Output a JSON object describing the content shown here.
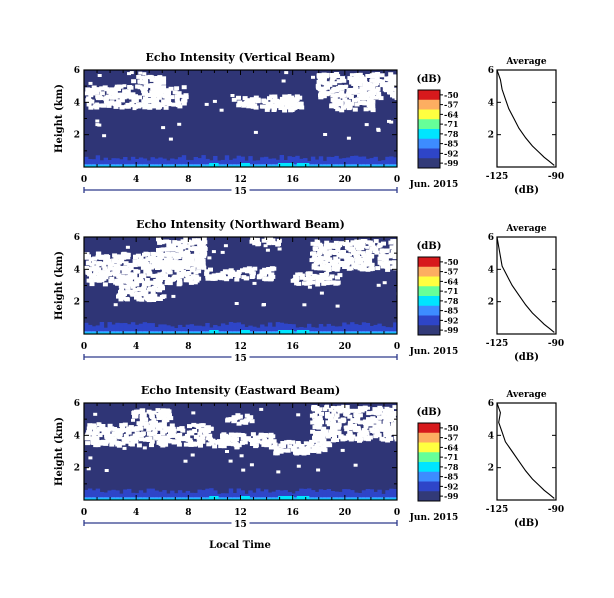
{
  "figure": {
    "xlabel": "Local Time",
    "date_label": "Jun. 2015",
    "day_label": "15",
    "colorbar_unit": "(dB)",
    "avg_title": "Average",
    "avg_xlabel": "(dB)"
  },
  "chart_data": [
    {
      "type": "heatmap",
      "title": "Echo Intensity (Vertical Beam)",
      "ylabel": "Height (km)",
      "xlabel": "Local Time",
      "x_ticks": [
        "0",
        "4",
        "8",
        "12",
        "16",
        "20",
        "0"
      ],
      "y_ticks": [
        "6",
        "4",
        "2"
      ],
      "xlim": [
        0,
        24
      ],
      "ylim": [
        0,
        6
      ],
      "colorbar": {
        "label": "(dB)",
        "ticks": [
          "-50",
          "-57",
          "-64",
          "-71",
          "-78",
          "-85",
          "-92",
          "-99"
        ],
        "range": [
          -99,
          -50
        ]
      },
      "colors": [
        "#d7191c",
        "#fdae61",
        "#ffff40",
        "#66ff99",
        "#00e5ff",
        "#3d8cff",
        "#2e45c8",
        "#323a78"
      ],
      "background": "#2f3576",
      "data_gap_color": "#ffffff",
      "noise_level": -99
    },
    {
      "type": "heatmap",
      "title": "Echo Intensity (Northward Beam)",
      "ylabel": "Height (km)",
      "xlabel": "Local Time",
      "x_ticks": [
        "0",
        "4",
        "8",
        "12",
        "16",
        "20",
        "0"
      ],
      "y_ticks": [
        "6",
        "4",
        "2"
      ],
      "xlim": [
        0,
        24
      ],
      "ylim": [
        0,
        6
      ],
      "colorbar": {
        "label": "(dB)",
        "ticks": [
          "-50",
          "-57",
          "-64",
          "-71",
          "-78",
          "-85",
          "-92",
          "-99"
        ],
        "range": [
          -99,
          -50
        ]
      },
      "colors": [
        "#d7191c",
        "#fdae61",
        "#ffff40",
        "#66ff99",
        "#00e5ff",
        "#3d8cff",
        "#2e45c8",
        "#323a78"
      ],
      "background": "#2f3576",
      "data_gap_color": "#ffffff",
      "noise_level": -99
    },
    {
      "type": "heatmap",
      "title": "Echo Intensity (Eastward Beam)",
      "ylabel": "Height (km)",
      "xlabel": "Local Time",
      "x_ticks": [
        "0",
        "4",
        "8",
        "12",
        "16",
        "20",
        "0"
      ],
      "y_ticks": [
        "6",
        "4",
        "2"
      ],
      "xlim": [
        0,
        24
      ],
      "ylim": [
        0,
        6
      ],
      "colorbar": {
        "label": "(dB)",
        "ticks": [
          "-50",
          "-57",
          "-64",
          "-71",
          "-78",
          "-85",
          "-92",
          "-99"
        ],
        "range": [
          -99,
          -50
        ]
      },
      "colors": [
        "#d7191c",
        "#fdae61",
        "#ffff40",
        "#66ff99",
        "#00e5ff",
        "#3d8cff",
        "#2e45c8",
        "#323a78"
      ],
      "background": "#2f3576",
      "data_gap_color": "#ffffff",
      "noise_level": -99
    },
    {
      "type": "line",
      "title": "Average",
      "xlabel": "(dB)",
      "x_ticks": [
        "-125",
        "-90"
      ],
      "y_ticks": [
        "6",
        "4",
        "2"
      ],
      "xlim": [
        -125,
        -90
      ],
      "ylim": [
        0,
        6
      ],
      "series": [
        {
          "x": [
            -125,
            -123,
            -122,
            -120,
            -118,
            -115,
            -112,
            -108,
            -104,
            -100,
            -97,
            -94,
            -91
          ],
          "y": [
            6,
            5.4,
            4.8,
            4.2,
            3.6,
            3.0,
            2.4,
            1.8,
            1.3,
            0.9,
            0.6,
            0.35,
            0.1
          ]
        }
      ]
    },
    {
      "type": "line",
      "title": "Average",
      "xlabel": "(dB)",
      "x_ticks": [
        "-125",
        "-90"
      ],
      "y_ticks": [
        "6",
        "4",
        "2"
      ],
      "xlim": [
        -125,
        -90
      ],
      "ylim": [
        0,
        6
      ],
      "series": [
        {
          "x": [
            -125,
            -124,
            -123,
            -122,
            -119,
            -116,
            -112,
            -108,
            -104,
            -100,
            -97,
            -94,
            -91
          ],
          "y": [
            6,
            5.4,
            4.8,
            4.2,
            3.6,
            3.0,
            2.4,
            1.8,
            1.3,
            0.9,
            0.6,
            0.35,
            0.1
          ]
        }
      ]
    },
    {
      "type": "line",
      "title": "Average",
      "xlabel": "(dB)",
      "x_ticks": [
        "-125",
        "-90"
      ],
      "y_ticks": [
        "6",
        "4",
        "2"
      ],
      "xlim": [
        -125,
        -90
      ],
      "ylim": [
        0,
        6
      ],
      "series": [
        {
          "x": [
            -125,
            -123,
            -124,
            -122,
            -120,
            -116,
            -112,
            -108,
            -104,
            -100,
            -97,
            -94,
            -91
          ],
          "y": [
            6,
            5.4,
            4.8,
            4.2,
            3.6,
            3.0,
            2.4,
            1.8,
            1.3,
            0.9,
            0.6,
            0.35,
            0.1
          ]
        }
      ]
    }
  ]
}
